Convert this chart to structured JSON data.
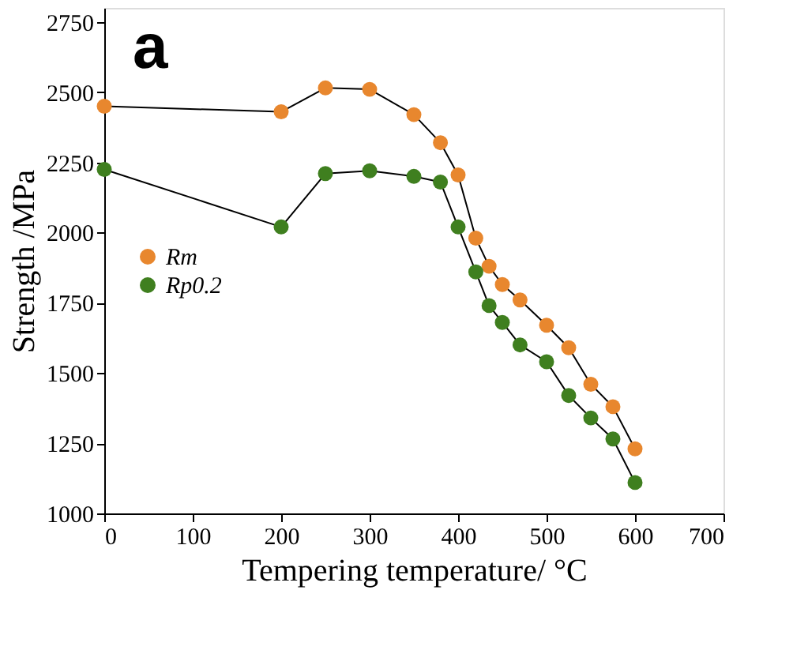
{
  "chart_data": {
    "type": "line",
    "xlabel": "Tempering temperature/ °C",
    "ylabel": "Strength /MPa",
    "annotations": [
      "a"
    ],
    "xlim": [
      0,
      700
    ],
    "xticks": [
      0,
      100,
      200,
      300,
      400,
      500,
      600,
      700
    ],
    "ylim": [
      1000,
      2800
    ],
    "yticks": [
      1000,
      1250,
      1500,
      1750,
      2000,
      2250,
      2500,
      2750
    ],
    "x": [
      0,
      200,
      250,
      300,
      350,
      380,
      400,
      420,
      435,
      450,
      470,
      500,
      525,
      550,
      575,
      600
    ],
    "series": [
      {
        "name": "Rm",
        "color": "#e8872e",
        "values": [
          2450,
          2430,
          2515,
          2510,
          2420,
          2320,
          2205,
          1980,
          1880,
          1815,
          1760,
          1670,
          1590,
          1460,
          1380,
          1230
        ]
      },
      {
        "name": "Rp0.2",
        "color": "#3f7f1f",
        "values": [
          2225,
          2020,
          2210,
          2220,
          2200,
          2180,
          2020,
          1860,
          1740,
          1680,
          1600,
          1540,
          1420,
          1340,
          1265,
          1110
        ]
      }
    ],
    "marker": "circle",
    "grid": false,
    "legend": "left"
  }
}
